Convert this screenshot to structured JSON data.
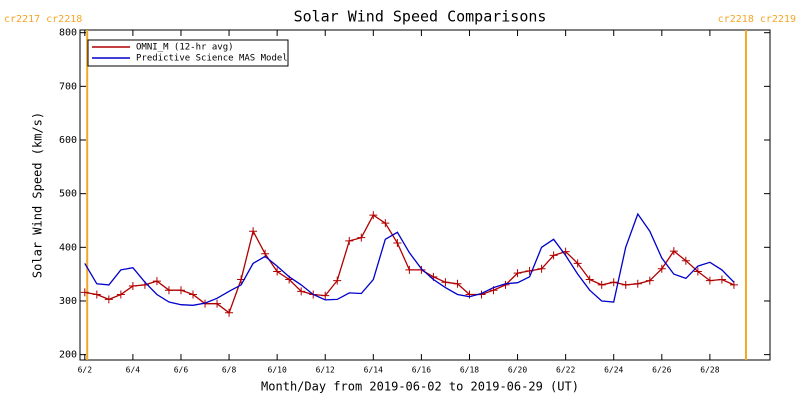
{
  "chart_data": {
    "type": "line",
    "title": "Solar Wind Speed Comparisons",
    "x_label": "Month/Day from 2019-06-02 to 2019-06-29 (UT)",
    "y_label": "Solar Wind Speed (km/s)",
    "x": [
      2,
      2.5,
      3,
      3.5,
      4,
      4.5,
      5,
      5.5,
      6,
      6.5,
      7,
      7.5,
      8,
      8.5,
      9,
      9.5,
      10,
      10.5,
      11,
      11.5,
      12,
      12.5,
      13,
      13.5,
      14,
      14.5,
      15,
      15.5,
      16,
      16.5,
      17,
      17.5,
      18,
      18.5,
      19,
      19.5,
      20,
      20.5,
      21,
      21.5,
      22,
      22.5,
      23,
      23.5,
      24,
      24.5,
      25,
      25.5,
      26,
      26.5,
      27,
      27.5,
      28,
      28.5,
      29
    ],
    "series": [
      {
        "name": "OMNI_M (12-hr avg)",
        "color": "#b00000",
        "marker": "plus",
        "values": [
          316,
          312,
          303,
          312,
          328,
          330,
          337,
          320,
          320,
          312,
          295,
          295,
          278,
          340,
          430,
          388,
          355,
          340,
          318,
          312,
          310,
          338,
          412,
          418,
          460,
          445,
          408,
          358,
          358,
          345,
          335,
          332,
          312,
          312,
          320,
          330,
          352,
          356,
          360,
          385,
          392,
          370,
          340,
          330,
          335,
          330,
          332,
          338,
          360,
          393,
          375,
          355,
          338,
          340,
          330
        ]
      },
      {
        "name": "Predictive Science MAS Model",
        "color": "#0000cc",
        "marker": "none",
        "values": [
          370,
          332,
          330,
          358,
          362,
          335,
          312,
          298,
          293,
          292,
          296,
          305,
          318,
          330,
          370,
          383,
          365,
          345,
          330,
          312,
          302,
          303,
          315,
          314,
          340,
          415,
          428,
          390,
          360,
          340,
          325,
          312,
          308,
          314,
          325,
          332,
          334,
          345,
          400,
          415,
          385,
          350,
          320,
          300,
          298,
          400,
          462,
          430,
          380,
          350,
          342,
          365,
          372,
          358,
          335
        ]
      }
    ],
    "xlim": [
      1.8,
      30.5
    ],
    "xticks": [
      {
        "value": 2,
        "label": "6/2"
      },
      {
        "value": 4,
        "label": "6/4"
      },
      {
        "value": 6,
        "label": "6/6"
      },
      {
        "value": 8,
        "label": "6/8"
      },
      {
        "value": 10,
        "label": "6/10"
      },
      {
        "value": 12,
        "label": "6/12"
      },
      {
        "value": 14,
        "label": "6/14"
      },
      {
        "value": 16,
        "label": "6/16"
      },
      {
        "value": 18,
        "label": "6/18"
      },
      {
        "value": 20,
        "label": "6/20"
      },
      {
        "value": 22,
        "label": "6/22"
      },
      {
        "value": 24,
        "label": "6/24"
      },
      {
        "value": 26,
        "label": "6/26"
      },
      {
        "value": 28,
        "label": "6/28"
      }
    ],
    "ylim": [
      190,
      805
    ],
    "yticks": [
      200,
      300,
      400,
      500,
      600,
      700,
      800
    ],
    "legend": "upper left",
    "annotations": [
      {
        "x": 2.1,
        "label": "cr2217 cr2218",
        "color": "#f5a623",
        "anchor": "start"
      },
      {
        "x": 29.5,
        "label": "cr2218 cr2219",
        "color": "#f5a623",
        "anchor": "end"
      }
    ]
  }
}
